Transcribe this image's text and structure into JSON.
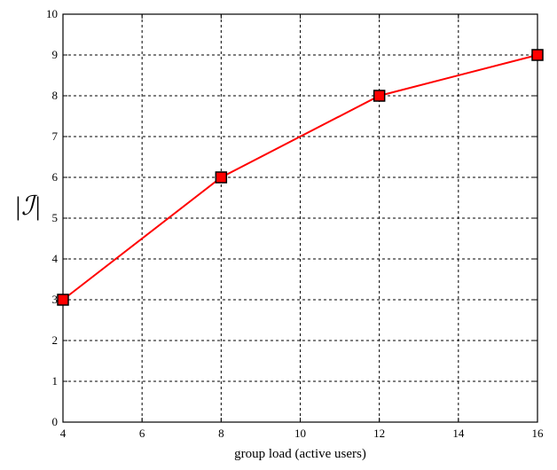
{
  "chart_data": {
    "type": "line",
    "title": "",
    "xlabel": "group load (active users)",
    "ylabel": "|ℐ|",
    "xlim": [
      4,
      16
    ],
    "ylim": [
      0,
      10
    ],
    "xticks": [
      4,
      6,
      8,
      10,
      12,
      14,
      16
    ],
    "yticks": [
      0,
      1,
      2,
      3,
      4,
      5,
      6,
      7,
      8,
      9,
      10
    ],
    "grid": true,
    "x": [
      4,
      8,
      12,
      16
    ],
    "series": [
      {
        "values": [
          3,
          6,
          8,
          9
        ],
        "color": "#ff0000",
        "marker": "square",
        "marker_fill": "#ff0000",
        "marker_edge": "#000000"
      }
    ]
  }
}
